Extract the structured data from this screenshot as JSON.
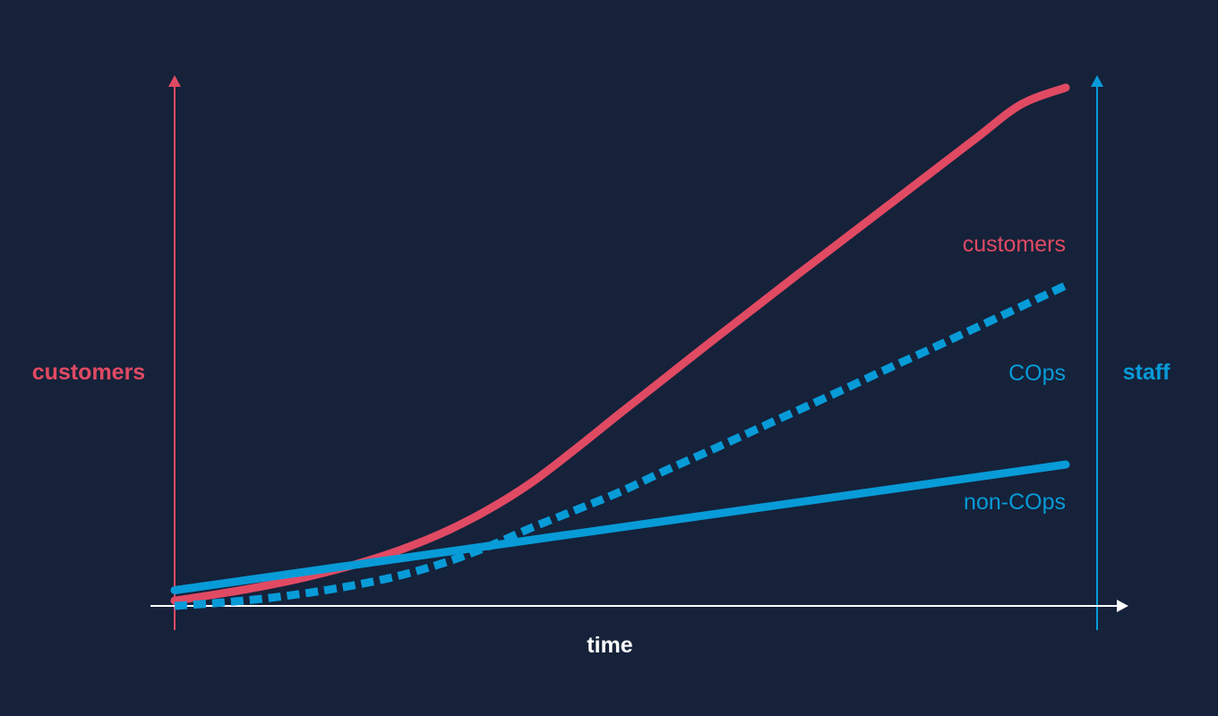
{
  "colors": {
    "background": "#15223a",
    "customers": "#e14a63",
    "staff": "#079bd8",
    "time_axis": "#ffffff"
  },
  "chart_data": {
    "type": "line",
    "xlabel": "time",
    "ylabel_left": "customers",
    "ylabel_right": "staff",
    "xlim": [
      0,
      1
    ],
    "ylim_left": [
      0,
      1
    ],
    "ylim_right": [
      0,
      1
    ],
    "grid": false,
    "series": [
      {
        "name": "customers",
        "axis": "left",
        "style": "solid",
        "color": "#e14a63",
        "x": [
          0,
          0.05,
          0.1,
          0.15,
          0.2,
          0.25,
          0.3,
          0.35,
          0.4,
          0.45,
          0.5,
          0.55,
          0.6,
          0.65,
          0.7,
          0.75,
          0.8,
          0.85,
          0.9,
          0.95,
          1
        ],
        "values": [
          0.01,
          0.023,
          0.038,
          0.056,
          0.078,
          0.105,
          0.139,
          0.182,
          0.235,
          0.3,
          0.368,
          0.435,
          0.502,
          0.568,
          0.634,
          0.699,
          0.764,
          0.829,
          0.894,
          0.958,
          0.99
        ]
      },
      {
        "name": "COps",
        "axis": "right",
        "style": "dashed",
        "color": "#079bd8",
        "x": [
          0,
          0.05,
          0.1,
          0.15,
          0.2,
          0.25,
          0.3,
          0.35,
          0.4,
          0.45,
          0.5,
          0.55,
          0.6,
          0.65,
          0.7,
          0.75,
          0.8,
          0.85,
          0.9,
          0.95,
          1
        ],
        "values": [
          0.0,
          0.006,
          0.014,
          0.025,
          0.039,
          0.057,
          0.081,
          0.112,
          0.149,
          0.183,
          0.218,
          0.258,
          0.296,
          0.335,
          0.374,
          0.413,
          0.453,
          0.492,
          0.532,
          0.572,
          0.612
        ]
      },
      {
        "name": "non-COps",
        "axis": "right",
        "style": "solid",
        "color": "#079bd8",
        "x": [
          0,
          1
        ],
        "values": [
          0.03,
          0.27
        ]
      }
    ],
    "annotations": [
      {
        "text": "customers",
        "series": "customers"
      },
      {
        "text": "COps",
        "series": "COps"
      },
      {
        "text": "non-COps",
        "series": "non-COps"
      }
    ]
  }
}
